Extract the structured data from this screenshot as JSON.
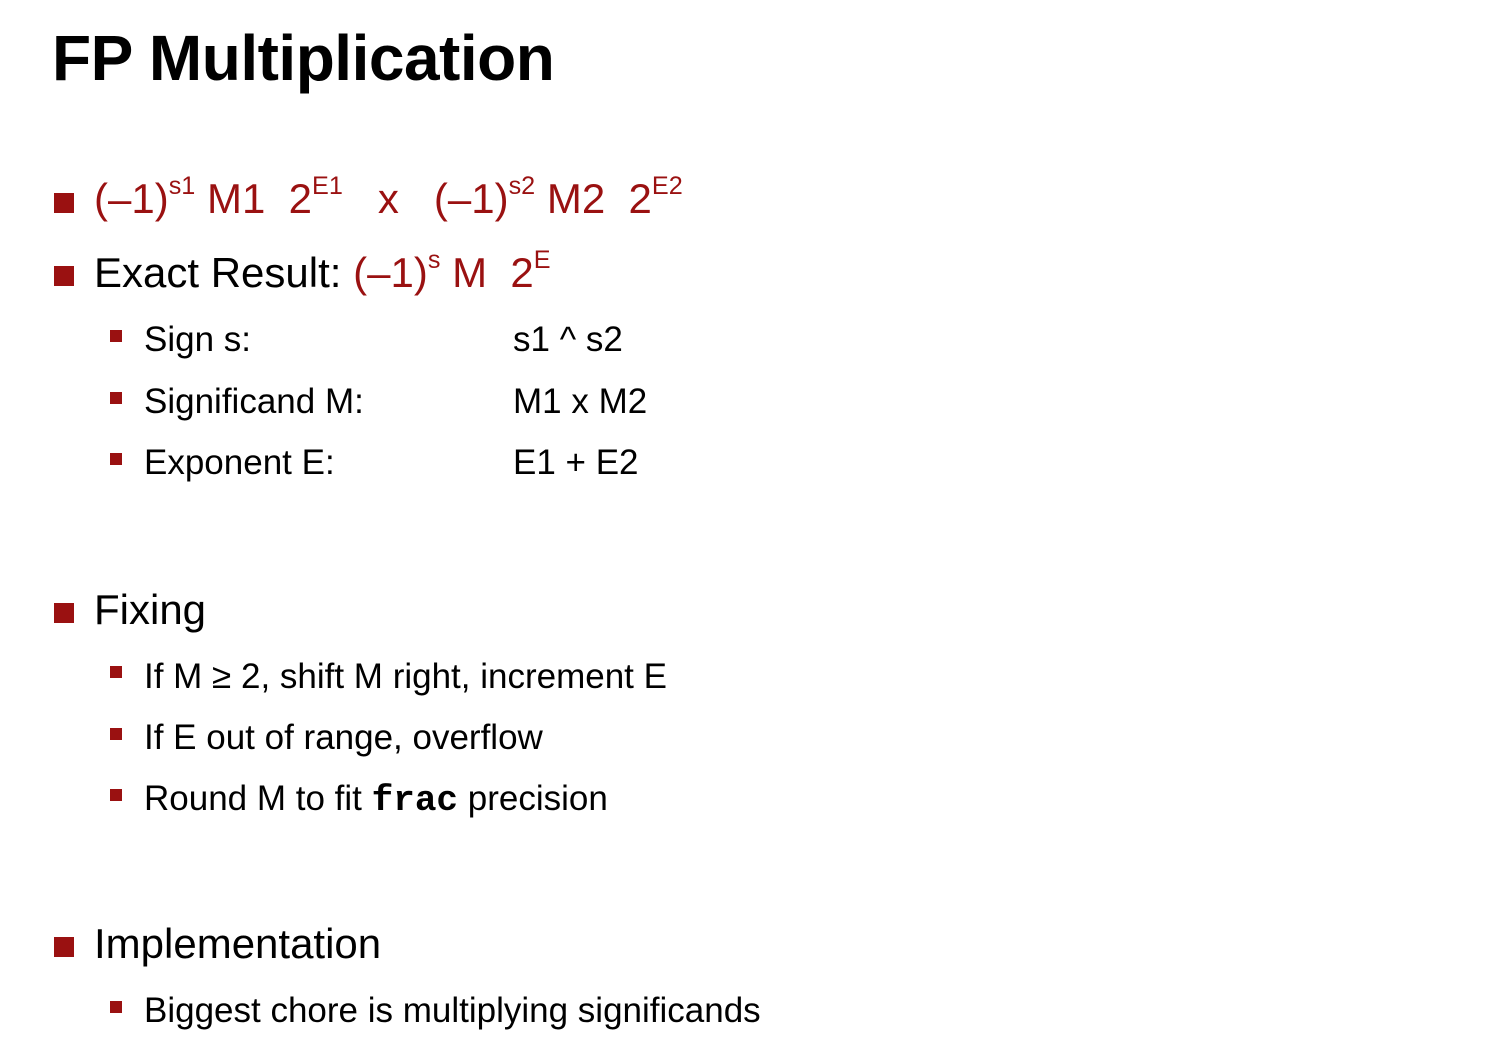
{
  "slide": {
    "title": "FP Multiplication",
    "accent_color": "#9a1111",
    "bullet_icon": "square-bullet"
  },
  "formula": {
    "op1_base": "(–1)",
    "op1_sign_exp": "s1",
    "op1_mant": " M1  2",
    "op1_exp": "E1",
    "times": "   x   ",
    "op2_base": "(–1)",
    "op2_sign_exp": "s2",
    "op2_mant": " M2  2",
    "op2_exp": "E2"
  },
  "exact": {
    "label": "Exact Result: ",
    "base": "(–1)",
    "sign_exp": "s",
    "mant": " M  2",
    "exp": "E"
  },
  "exact_items": [
    {
      "label": "Sign s:",
      "value": "s1 ^ s2"
    },
    {
      "label": "Significand M:",
      "value": "M1 x  M2"
    },
    {
      "label": "Exponent E:",
      "value": "E1 + E2"
    }
  ],
  "fixing": {
    "heading": "Fixing",
    "items": [
      "If M ≥ 2, shift M right, increment E",
      "If E out of range, overflow"
    ],
    "round_prefix": "Round M to fit ",
    "round_code": "frac",
    "round_suffix": " precision"
  },
  "implementation": {
    "heading": "Implementation",
    "items": [
      "Biggest chore is multiplying significands"
    ]
  }
}
